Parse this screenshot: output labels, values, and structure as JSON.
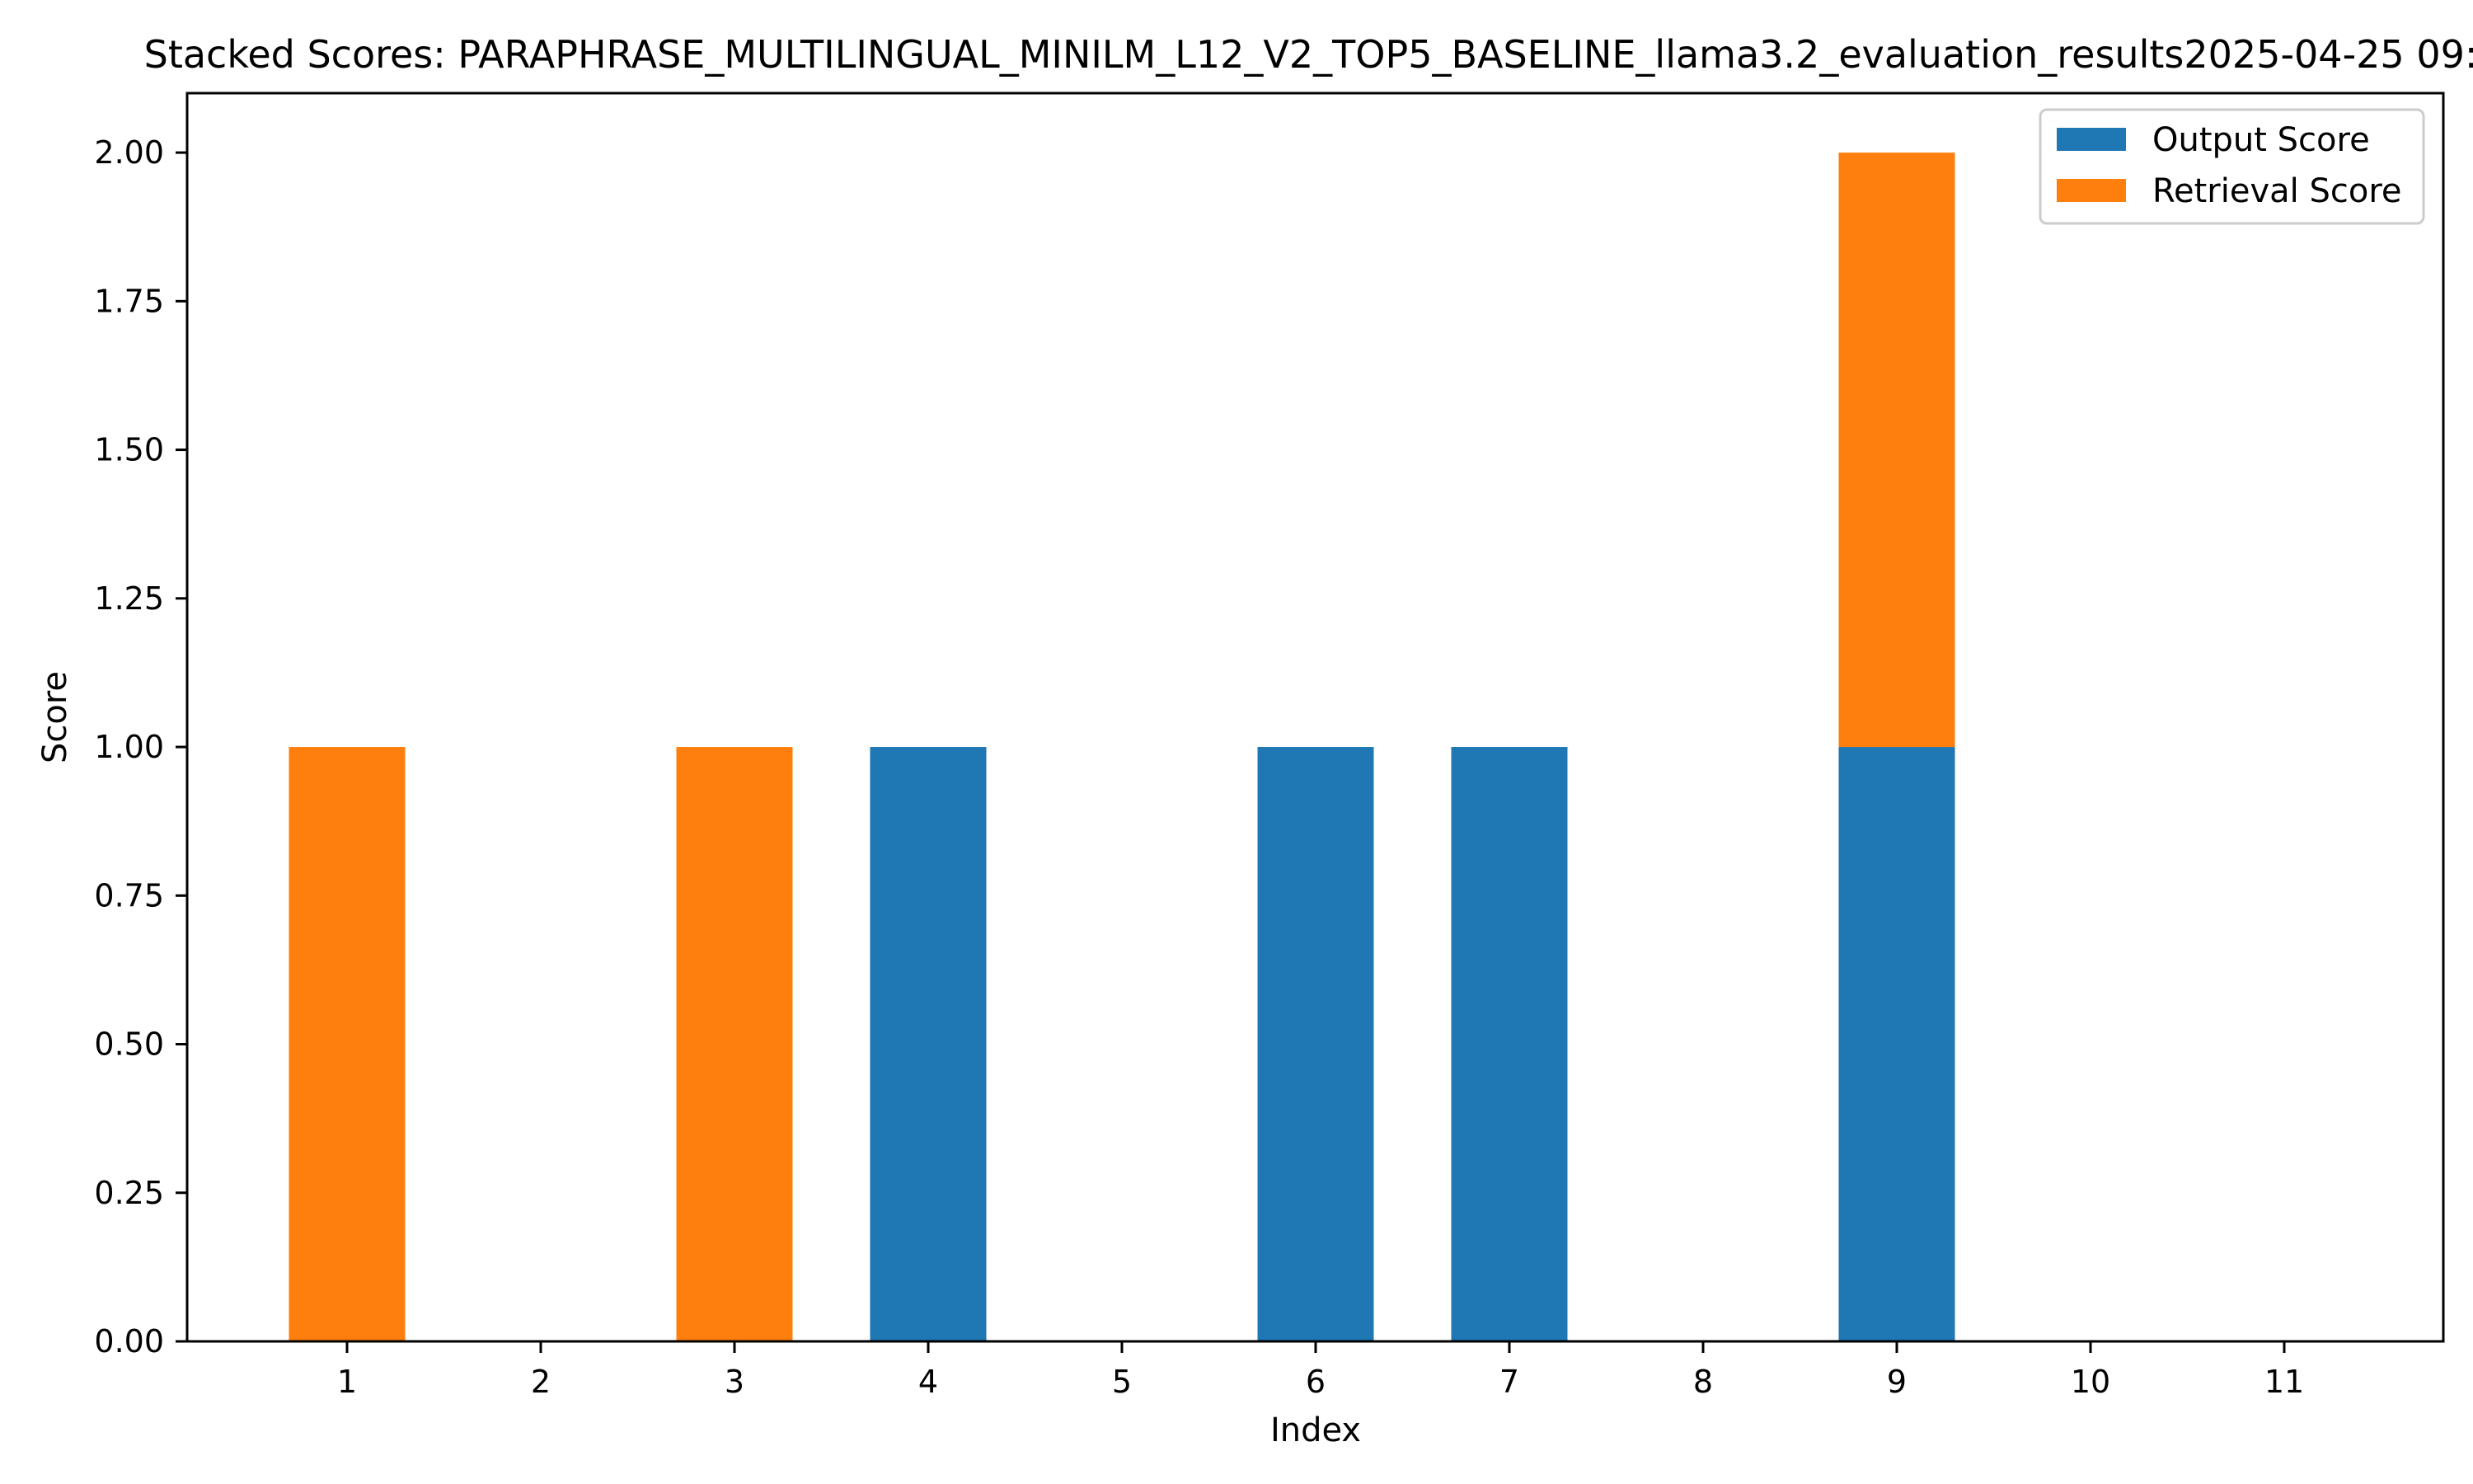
{
  "chart_data": {
    "type": "bar",
    "stacked": true,
    "title": "Stacked Scores: PARAPHRASE_MULTILINGUAL_MINILM_L12_V2_TOP5_BASELINE_llama3.2_evaluation_results2025-04-25 09:",
    "xlabel": "Index",
    "ylabel": "Score",
    "categories": [
      "1",
      "2",
      "3",
      "4",
      "5",
      "6",
      "7",
      "8",
      "9",
      "10",
      "11"
    ],
    "series": [
      {
        "name": "Output Score",
        "color": "#1f77b4",
        "values": [
          0,
          0,
          0,
          1,
          0,
          1,
          1,
          0,
          1,
          0,
          0
        ]
      },
      {
        "name": "Retrieval Score",
        "color": "#ff7f0e",
        "values": [
          1,
          0,
          1,
          0,
          0,
          0,
          0,
          0,
          1,
          0,
          0
        ]
      }
    ],
    "ylim": [
      0,
      2.1
    ],
    "yticks": [
      "0.00",
      "0.25",
      "0.50",
      "0.75",
      "1.00",
      "1.25",
      "1.50",
      "1.75",
      "2.00"
    ],
    "grid": false,
    "legend_position": "top-right"
  }
}
